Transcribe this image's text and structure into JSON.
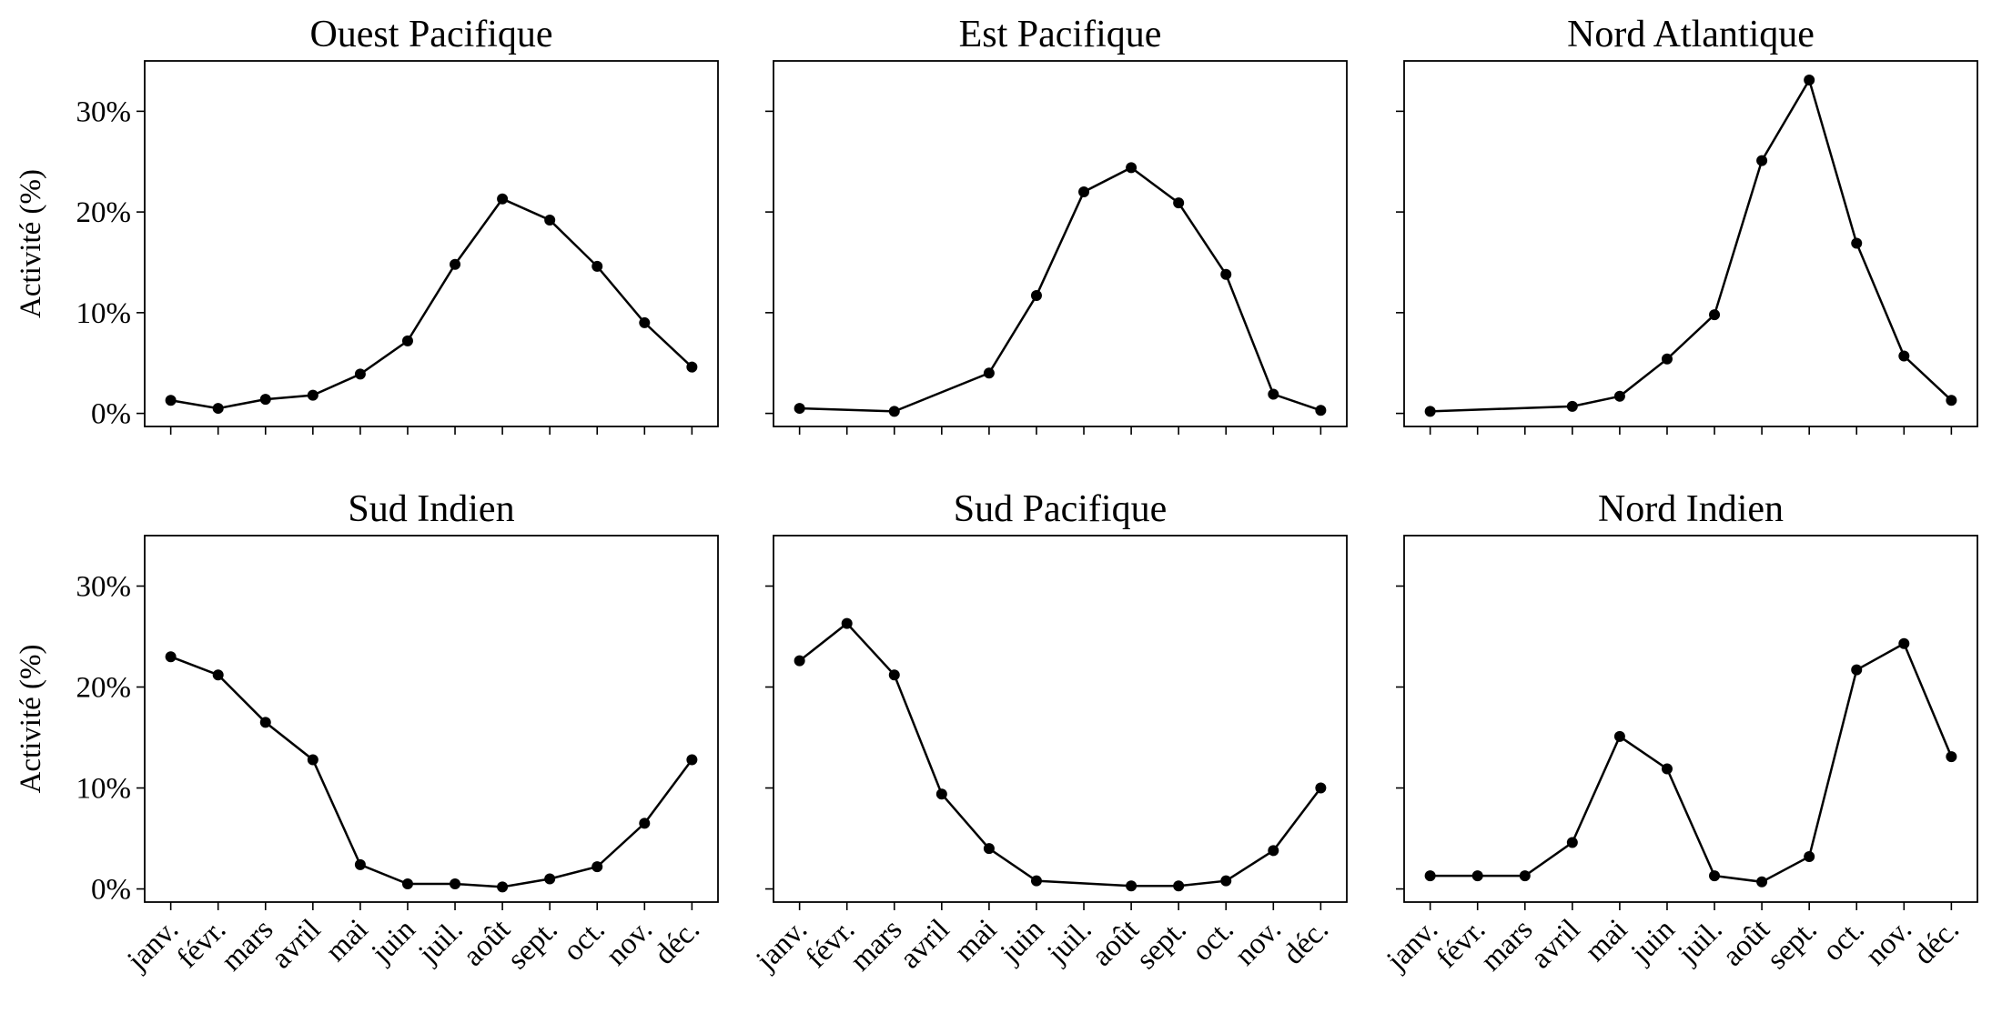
{
  "categories": [
    "janv.",
    "févr.",
    "mars",
    "avril",
    "mai",
    "juin",
    "juil.",
    "août",
    "sept.",
    "oct.",
    "nov.",
    "déc."
  ],
  "ylabel": "Activité (%)",
  "ylim": [
    -1.3,
    35
  ],
  "yticks": [
    {
      "value": 0,
      "label": "0%"
    },
    {
      "value": 10,
      "label": "10%"
    },
    {
      "value": 20,
      "label": "20%"
    },
    {
      "value": 30,
      "label": "30%"
    }
  ],
  "chart_data": [
    {
      "type": "line",
      "title": "Ouest Pacifique",
      "color": "#000000",
      "values": [
        1.3,
        0.5,
        1.4,
        1.8,
        3.9,
        7.2,
        14.8,
        21.3,
        19.2,
        14.6,
        9.0,
        4.6
      ]
    },
    {
      "type": "line",
      "title": "Est Pacifique",
      "color": "#000000",
      "values": [
        0.5,
        null,
        0.2,
        null,
        4.0,
        11.7,
        22.0,
        24.4,
        20.9,
        13.8,
        1.9,
        0.3
      ]
    },
    {
      "type": "line",
      "title": "Nord Atlantique",
      "color": "#000000",
      "values": [
        0.2,
        null,
        null,
        0.7,
        1.7,
        5.4,
        9.8,
        25.1,
        33.1,
        16.9,
        5.7,
        1.3
      ]
    },
    {
      "type": "line",
      "title": "Sud Indien",
      "color": "#000000",
      "values": [
        23.0,
        21.2,
        16.5,
        12.8,
        2.4,
        0.5,
        0.5,
        0.2,
        1.0,
        2.2,
        6.5,
        12.8
      ]
    },
    {
      "type": "line",
      "title": "Sud Pacifique",
      "color": "#000000",
      "values": [
        22.6,
        26.3,
        21.2,
        9.4,
        4.0,
        0.8,
        null,
        0.3,
        0.3,
        0.8,
        3.8,
        10.0
      ]
    },
    {
      "type": "line",
      "title": "Nord Indien",
      "color": "#000000",
      "values": [
        1.3,
        1.3,
        1.3,
        4.6,
        15.1,
        11.9,
        1.3,
        0.7,
        3.2,
        21.7,
        24.3,
        13.1
      ]
    }
  ]
}
